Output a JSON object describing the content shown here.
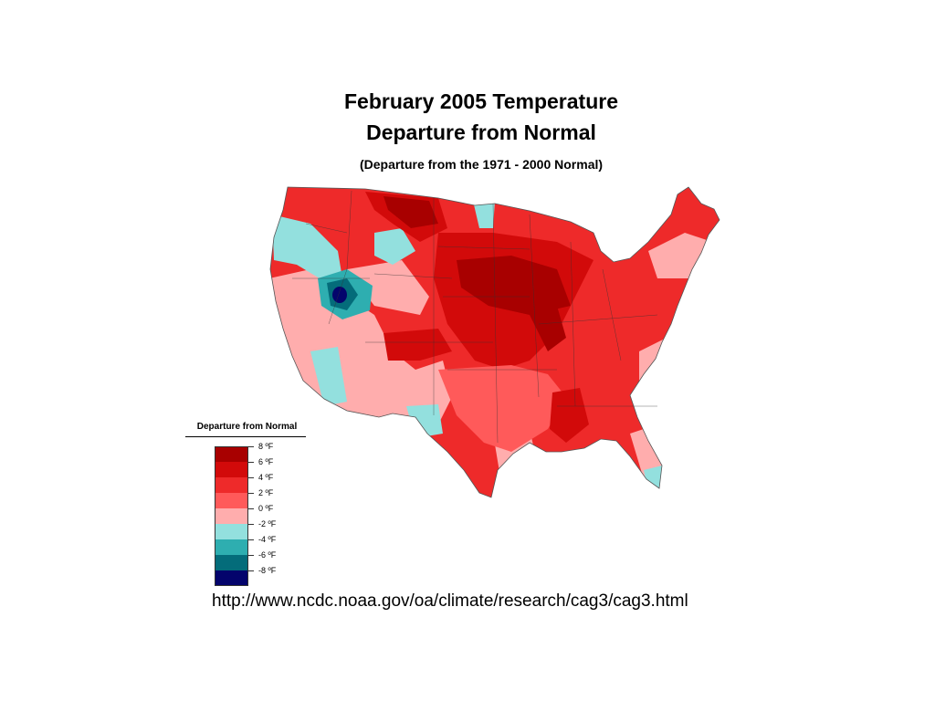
{
  "title_line1": "February 2005 Temperature",
  "title_line2": "Departure from Normal",
  "subtitle": "(Departure from the 1971 - 2000 Normal)",
  "legend": {
    "title": "Departure from Normal",
    "labels": [
      "8 ºF",
      "6 ºF",
      "4 ºF",
      "2 ºF",
      "0 ºF",
      "-2 ºF",
      "-4 ºF",
      "-6 ºF",
      "-8 ºF"
    ],
    "colors": [
      "#a80000",
      "#d20a0a",
      "#ee2a2a",
      "#ff5a5a",
      "#ffadad",
      "#93e0de",
      "#2eaeb0",
      "#046c7a",
      "#04046c"
    ]
  },
  "url": "http://www.ncdc.noaa.gov/oa/climate/research/cag3/cag3.html"
}
